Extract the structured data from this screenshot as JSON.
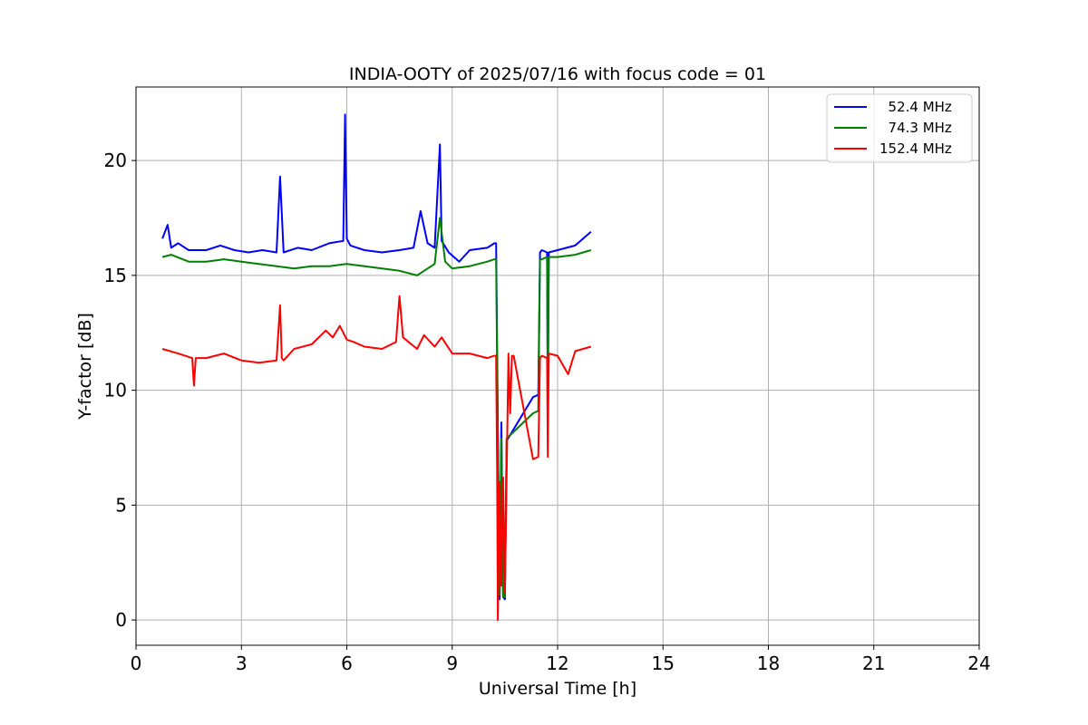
{
  "chart_data": {
    "type": "line",
    "title": "INDIA-OOTY of 2025/07/16 with focus code = 01",
    "xlabel": "Universal Time [h]",
    "ylabel": "Y-factor [dB]",
    "xlim": [
      0,
      24
    ],
    "ylim": [
      -1.1,
      23.2
    ],
    "xticks": [
      0,
      3,
      6,
      9,
      12,
      15,
      18,
      21,
      24
    ],
    "yticks": [
      0,
      5,
      10,
      15,
      20
    ],
    "grid": true,
    "legend_position": "top-right",
    "series": [
      {
        "name": "  52.4 MHz",
        "color": "#0000ff",
        "x": [
          0.75,
          0.9,
          1.0,
          1.2,
          1.5,
          2.0,
          2.4,
          2.8,
          3.2,
          3.6,
          4.0,
          4.1,
          4.2,
          4.6,
          5.0,
          5.5,
          5.9,
          5.95,
          6.0,
          6.1,
          6.5,
          7.0,
          7.5,
          7.9,
          8.1,
          8.3,
          8.5,
          8.65,
          8.7,
          8.9,
          9.2,
          9.5,
          10.0,
          10.2,
          10.25,
          10.3,
          10.35,
          10.4,
          10.45,
          10.5,
          10.55,
          11.3,
          11.45,
          11.5,
          11.55,
          11.7,
          11.72,
          11.75,
          12.0,
          12.5,
          12.95
        ],
        "y": [
          16.6,
          17.2,
          16.2,
          16.4,
          16.1,
          16.1,
          16.3,
          16.1,
          16.0,
          16.1,
          16.0,
          19.3,
          16.0,
          16.2,
          16.1,
          16.4,
          16.5,
          22.0,
          16.6,
          16.3,
          16.1,
          16.0,
          16.1,
          16.2,
          17.8,
          16.4,
          16.2,
          20.7,
          16.5,
          16.0,
          15.6,
          16.1,
          16.2,
          16.4,
          16.4,
          8.5,
          0.9,
          8.6,
          1.0,
          0.9,
          7.8,
          9.7,
          9.8,
          16.0,
          16.1,
          16.0,
          9.2,
          16.0,
          16.1,
          16.3,
          16.9
        ]
      },
      {
        "name": "  74.3 MHz",
        "color": "#008000",
        "x": [
          0.75,
          1.0,
          1.5,
          2.0,
          2.5,
          3.0,
          3.5,
          4.0,
          4.5,
          5.0,
          5.5,
          6.0,
          6.5,
          7.0,
          7.5,
          8.0,
          8.3,
          8.5,
          8.65,
          8.8,
          9.0,
          9.5,
          10.0,
          10.2,
          10.25,
          10.3,
          10.35,
          10.4,
          10.45,
          10.5,
          10.55,
          11.3,
          11.45,
          11.5,
          11.55,
          11.7,
          11.72,
          11.75,
          12.0,
          12.5,
          12.95
        ],
        "y": [
          15.8,
          15.9,
          15.6,
          15.6,
          15.7,
          15.6,
          15.5,
          15.4,
          15.3,
          15.4,
          15.4,
          15.5,
          15.4,
          15.3,
          15.2,
          15.0,
          15.3,
          15.5,
          17.5,
          15.6,
          15.3,
          15.4,
          15.6,
          15.7,
          15.7,
          7.8,
          1.1,
          7.9,
          1.0,
          1.0,
          7.9,
          9.0,
          9.1,
          15.7,
          15.7,
          15.8,
          9.3,
          15.8,
          15.8,
          15.9,
          16.1
        ]
      },
      {
        "name": "152.4 MHz",
        "color": "#ff0000",
        "x": [
          0.75,
          1.2,
          1.6,
          1.65,
          1.7,
          2.0,
          2.5,
          3.0,
          3.5,
          4.0,
          4.1,
          4.15,
          4.2,
          4.5,
          5.0,
          5.4,
          5.6,
          5.8,
          6.0,
          6.2,
          6.5,
          7.0,
          7.4,
          7.5,
          7.6,
          8.0,
          8.2,
          8.5,
          8.7,
          9.0,
          9.5,
          10.0,
          10.2,
          10.25,
          10.28,
          10.3,
          10.35,
          10.4,
          10.45,
          10.5,
          10.55,
          10.6,
          10.65,
          10.7,
          10.75,
          11.3,
          11.45,
          11.5,
          11.55,
          11.7,
          11.72,
          11.75,
          12.0,
          12.3,
          12.5,
          12.95
        ],
        "y": [
          11.8,
          11.6,
          11.4,
          10.2,
          11.4,
          11.4,
          11.6,
          11.3,
          11.2,
          11.3,
          13.7,
          11.4,
          11.3,
          11.8,
          12.0,
          12.6,
          12.3,
          12.8,
          12.2,
          12.1,
          11.9,
          11.8,
          12.1,
          14.1,
          12.3,
          11.8,
          12.4,
          11.9,
          12.3,
          11.6,
          11.6,
          11.4,
          11.5,
          11.5,
          6.4,
          0.0,
          6.0,
          1.5,
          6.2,
          1.2,
          6.3,
          11.6,
          9.0,
          11.5,
          11.5,
          7.0,
          7.1,
          11.4,
          11.5,
          11.4,
          7.1,
          11.6,
          11.5,
          10.7,
          11.7,
          11.9
        ]
      }
    ]
  }
}
